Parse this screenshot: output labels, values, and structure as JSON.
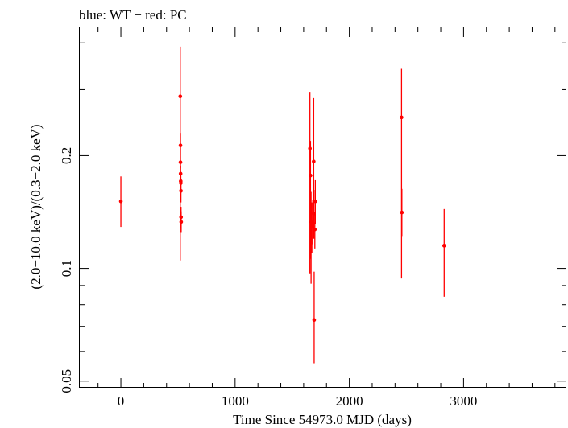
{
  "chart_data": {
    "type": "scatter",
    "title": "blue: WT − red: PC",
    "xlabel": "Time Since 54973.0 MJD (days)",
    "ylabel": "(2.0−10.0 keV)/(0.3−2.0 keV)",
    "xlim": [
      -360,
      3900
    ],
    "ylim": [
      0.048,
      0.44
    ],
    "yscale": "log",
    "grid": false,
    "x_ticks": [
      0,
      1000,
      2000,
      3000
    ],
    "x_tick_labels": [
      "0",
      "1000",
      "2000",
      "3000"
    ],
    "y_ticks": [
      0.05,
      0.1,
      0.2
    ],
    "y_tick_labels": [
      "0.05",
      "0.1",
      "0.2"
    ],
    "series": [
      {
        "color": "#ff0000",
        "points": [
          {
            "x": 0,
            "y": 0.151,
            "ylo": 0.129,
            "yhi": 0.176
          },
          {
            "x": 520,
            "y": 0.288,
            "ylo": 0.105,
            "yhi": 0.391
          },
          {
            "x": 522,
            "y": 0.213,
            "ylo": 0.2,
            "yhi": 0.23
          },
          {
            "x": 522,
            "y": 0.192,
            "ylo": 0.185,
            "yhi": 0.2
          },
          {
            "x": 523,
            "y": 0.179,
            "ylo": 0.17,
            "yhi": 0.188
          },
          {
            "x": 524,
            "y": 0.171,
            "ylo": 0.16,
            "yhi": 0.181
          },
          {
            "x": 525,
            "y": 0.169,
            "ylo": 0.16,
            "yhi": 0.179
          },
          {
            "x": 526,
            "y": 0.161,
            "ylo": 0.15,
            "yhi": 0.17
          },
          {
            "x": 527,
            "y": 0.137,
            "ylo": 0.128,
            "yhi": 0.146
          },
          {
            "x": 528,
            "y": 0.133,
            "ylo": 0.125,
            "yhi": 0.142
          },
          {
            "x": 1655,
            "y": 0.209,
            "ylo": 0.097,
            "yhi": 0.296
          },
          {
            "x": 1660,
            "y": 0.177,
            "ylo": 0.106,
            "yhi": 0.219
          },
          {
            "x": 1665,
            "y": 0.133,
            "ylo": 0.091,
            "yhi": 0.16
          },
          {
            "x": 1672,
            "y": 0.129,
            "ylo": 0.11,
            "yhi": 0.15
          },
          {
            "x": 1680,
            "y": 0.132,
            "ylo": 0.116,
            "yhi": 0.152
          },
          {
            "x": 1688,
            "y": 0.193,
            "ylo": 0.13,
            "yhi": 0.285
          },
          {
            "x": 1690,
            "y": 0.14,
            "ylo": 0.12,
            "yhi": 0.162
          },
          {
            "x": 1692,
            "y": 0.0728,
            "ylo": 0.0558,
            "yhi": 0.098
          },
          {
            "x": 1698,
            "y": 0.127,
            "ylo": 0.113,
            "yhi": 0.141
          },
          {
            "x": 1702,
            "y": 0.151,
            "ylo": 0.131,
            "yhi": 0.172
          },
          {
            "x": 2457,
            "y": 0.253,
            "ylo": 0.094,
            "yhi": 0.341
          },
          {
            "x": 2460,
            "y": 0.141,
            "ylo": 0.122,
            "yhi": 0.163
          },
          {
            "x": 2830,
            "y": 0.115,
            "ylo": 0.084,
            "yhi": 0.144
          }
        ]
      }
    ]
  }
}
